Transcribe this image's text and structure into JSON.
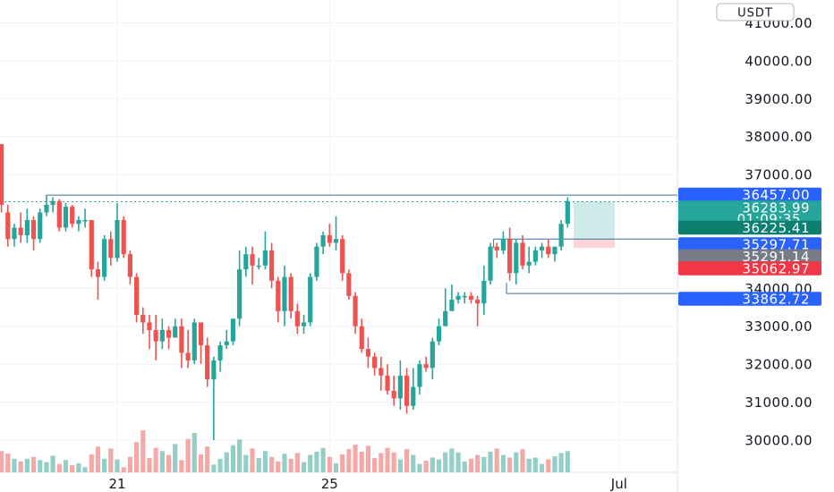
{
  "currency_button": "USDT",
  "chart_data": {
    "type": "candlestick",
    "ylim": [
      29150,
      41600
    ],
    "y_ticks": [
      "41000.00",
      "40000.00",
      "39000.00",
      "38000.00",
      "37000.00",
      "34000.00",
      "33000.00",
      "32000.00",
      "31000.00",
      "30000.00"
    ],
    "y_tick_values": [
      41000,
      40000,
      39000,
      38000,
      37000,
      34000,
      33000,
      32000,
      31000,
      30000
    ],
    "x_ticks": [
      {
        "label": "21",
        "index": 18
      },
      {
        "label": "25",
        "index": 51
      },
      {
        "label": "Jul",
        "index": 96
      }
    ],
    "x_slots": 108,
    "candles": [
      [
        37800,
        36200,
        37800,
        36000
      ],
      [
        36000,
        35300,
        36200,
        35100
      ],
      [
        35300,
        35600,
        35700,
        35100
      ],
      [
        35600,
        35400,
        36000,
        35200
      ],
      [
        35400,
        35800,
        36100,
        35200
      ],
      [
        35800,
        35300,
        35900,
        35000
      ],
      [
        35300,
        36000,
        36100,
        35200
      ],
      [
        36000,
        36200,
        36450,
        35900
      ],
      [
        36200,
        36300,
        36400,
        36000
      ],
      [
        36300,
        35600,
        36350,
        35500
      ],
      [
        35600,
        36150,
        36250,
        35500
      ],
      [
        36150,
        35700,
        36200,
        35600
      ],
      [
        35700,
        35800,
        35900,
        35500
      ],
      [
        35800,
        35800,
        36100,
        35600
      ],
      [
        35800,
        34500,
        35800,
        34300
      ],
      [
        34500,
        34300,
        34700,
        33700
      ],
      [
        34300,
        35300,
        35400,
        34200
      ],
      [
        35300,
        34800,
        35500,
        34600
      ],
      [
        34800,
        35800,
        36250,
        34700
      ],
      [
        35800,
        34900,
        35900,
        34800
      ],
      [
        34900,
        34300,
        35000,
        34100
      ],
      [
        34300,
        33300,
        34400,
        33100
      ],
      [
        33300,
        33100,
        33500,
        32800
      ],
      [
        33100,
        32900,
        33300,
        32400
      ],
      [
        32900,
        32600,
        33300,
        32100
      ],
      [
        32600,
        32900,
        33200,
        32400
      ],
      [
        32900,
        32700,
        33000,
        32400
      ],
      [
        32700,
        33000,
        33200,
        32700
      ],
      [
        33000,
        32300,
        33200,
        31900
      ],
      [
        32300,
        32100,
        32900,
        31900
      ],
      [
        32100,
        33100,
        33200,
        32000
      ],
      [
        33100,
        32500,
        33100,
        32000
      ],
      [
        32500,
        31600,
        32700,
        31400
      ],
      [
        31600,
        32100,
        32200,
        30000
      ],
      [
        32100,
        32500,
        32600,
        31800
      ],
      [
        32500,
        32600,
        32900,
        32400
      ],
      [
        32600,
        33200,
        33200,
        32500
      ],
      [
        33200,
        34500,
        35000,
        33000
      ],
      [
        34500,
        34900,
        35100,
        34300
      ],
      [
        34900,
        34600,
        35100,
        34100
      ],
      [
        34600,
        34600,
        34800,
        34500
      ],
      [
        34600,
        35000,
        35500,
        34500
      ],
      [
        35000,
        34200,
        35200,
        34000
      ],
      [
        34200,
        33400,
        34300,
        33100
      ],
      [
        33400,
        34300,
        34600,
        33000
      ],
      [
        34300,
        33400,
        34400,
        33200
      ],
      [
        33400,
        33000,
        33600,
        32800
      ],
      [
        33000,
        33100,
        33300,
        32800
      ],
      [
        33100,
        34300,
        34400,
        33000
      ],
      [
        34300,
        35100,
        35200,
        34200
      ],
      [
        35100,
        35400,
        35500,
        34900
      ],
      [
        35400,
        35200,
        35700,
        35100
      ],
      [
        35200,
        35300,
        35900,
        35000
      ],
      [
        35300,
        34400,
        35400,
        34200
      ],
      [
        34400,
        33800,
        34500,
        33700
      ],
      [
        33800,
        33000,
        33900,
        32800
      ],
      [
        33000,
        32400,
        33200,
        32300
      ],
      [
        32400,
        32200,
        32700,
        31900
      ],
      [
        32200,
        31900,
        32300,
        31700
      ],
      [
        31900,
        31700,
        32200,
        31300
      ],
      [
        31700,
        31300,
        32000,
        31200
      ],
      [
        31300,
        31100,
        31700,
        30900
      ],
      [
        31100,
        31700,
        32100,
        30800
      ],
      [
        31700,
        30900,
        31900,
        30700
      ],
      [
        30900,
        31400,
        31900,
        30800
      ],
      [
        31400,
        32000,
        32100,
        31200
      ],
      [
        32000,
        31900,
        32200,
        31800
      ],
      [
        31900,
        32600,
        32700,
        31600
      ],
      [
        32600,
        33000,
        33200,
        32500
      ],
      [
        33000,
        33400,
        34000,
        33000
      ],
      [
        33400,
        33700,
        34100,
        33600
      ],
      [
        33700,
        33800,
        33900,
        33600
      ],
      [
        33800,
        33800,
        33900,
        33600
      ],
      [
        33800,
        33700,
        33900,
        33600
      ],
      [
        33700,
        33600,
        33800,
        33000
      ],
      [
        33600,
        34200,
        34600,
        33300
      ],
      [
        34200,
        35100,
        35200,
        34100
      ],
      [
        35100,
        35000,
        35200,
        34800
      ],
      [
        35000,
        35300,
        35500,
        34900
      ],
      [
        35300,
        34400,
        35600,
        34200
      ],
      [
        34400,
        35200,
        35300,
        34100
      ],
      [
        35200,
        34600,
        35400,
        34500
      ],
      [
        34600,
        34700,
        35100,
        34400
      ],
      [
        34700,
        35000,
        35100,
        34600
      ],
      [
        35000,
        35100,
        35200,
        34800
      ],
      [
        35100,
        34900,
        35300,
        34800
      ],
      [
        34900,
        35100,
        35100,
        34700
      ],
      [
        35100,
        35700,
        35800,
        35000
      ],
      [
        35700,
        36300,
        36400,
        35600
      ]
    ],
    "volumes": [
      0.33,
      0.29,
      0.21,
      0.17,
      0.21,
      0.24,
      0.19,
      0.16,
      0.26,
      0.13,
      0.19,
      0.11,
      0.14,
      0.08,
      0.28,
      0.4,
      0.21,
      0.37,
      0.2,
      0.08,
      0.24,
      0.47,
      0.65,
      0.22,
      0.38,
      0.33,
      0.27,
      0.44,
      0.19,
      0.52,
      0.61,
      0.28,
      0.4,
      0.12,
      0.21,
      0.31,
      0.42,
      0.51,
      0.27,
      0.37,
      0.22,
      0.33,
      0.24,
      0.17,
      0.29,
      0.21,
      0.3,
      0.16,
      0.27,
      0.32,
      0.38,
      0.24,
      0.14,
      0.28,
      0.36,
      0.43,
      0.32,
      0.41,
      0.22,
      0.3,
      0.38,
      0.31,
      0.2,
      0.36,
      0.27,
      0.13,
      0.18,
      0.23,
      0.2,
      0.31,
      0.37,
      0.31,
      0.17,
      0.21,
      0.27,
      0.24,
      0.32,
      0.37,
      0.27,
      0.23,
      0.31,
      0.36,
      0.21,
      0.23,
      0.13,
      0.2,
      0.25,
      0.3,
      0.33
    ],
    "resistance_line": 36457.0,
    "support_line_1": 35297.71,
    "support_line_2": 33862.72,
    "current_price_line": 36283.99,
    "position": {
      "entry": 35297.71,
      "target": 36283.99,
      "stop": 35062.97
    },
    "price_tags": [
      {
        "label": "36457.00",
        "value": 36457.0,
        "color": "#2962ff"
      },
      {
        "label": "36283.99",
        "value": 36283.99,
        "color": "#26a69a",
        "sub": "01:09:35"
      },
      {
        "label": "36225.41",
        "value": 36225.41,
        "color": "#0c7f6f"
      },
      {
        "label": "35297.71",
        "value": 35297.71,
        "color": "#2962ff"
      },
      {
        "label": "35291.14",
        "value": 35291.14,
        "color": "#787b86"
      },
      {
        "label": "35062.97",
        "value": 35062.97,
        "color": "#f23645"
      },
      {
        "label": "33862.72",
        "value": 33862.72,
        "color": "#2962ff"
      }
    ],
    "colors": {
      "up": "#26a69a",
      "down": "#ef5350",
      "up_volume": "#93cfc6",
      "down_volume": "#f4a9a8",
      "line": "#3d6f9a"
    }
  }
}
